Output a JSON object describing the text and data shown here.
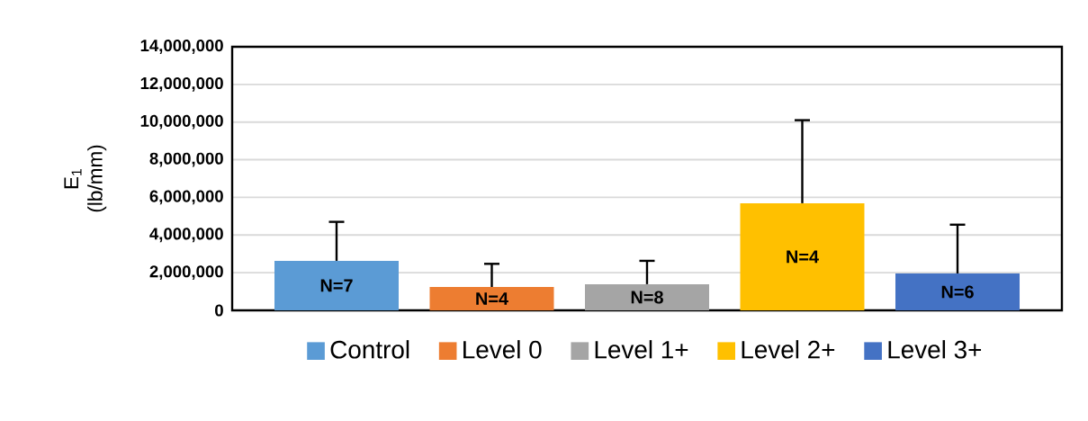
{
  "chart_data": {
    "type": "bar",
    "ylabel": "E$_{1}$ (lb/mm)",
    "categories": [
      null
    ],
    "series": [
      {
        "name": "Control",
        "color": "#5b9bd5",
        "values": [
          2630000
        ],
        "errors": [
          [
            2630000,
            4700000
          ]
        ]
      },
      {
        "name": "Level 0",
        "color": "#ed7d31",
        "values": [
          1240000
        ],
        "errors": [
          [
            1240000,
            2470000
          ]
        ]
      },
      {
        "name": "Level 1+",
        "color": "#a5a5a5",
        "values": [
          1390000
        ],
        "errors": [
          [
            1390000,
            2630000
          ]
        ]
      },
      {
        "name": "Level 2+",
        "color": "#ffc000",
        "values": [
          5690000
        ],
        "errors": [
          [
            5690000,
            10100000
          ]
        ]
      },
      {
        "name": "Level 3+",
        "color": "#4472c4",
        "values": [
          1960000
        ],
        "errors": [
          [
            1960000,
            4550000
          ]
        ]
      }
    ],
    "ylim": [
      0,
      14000000
    ],
    "yticks": [
      {
        "value": 0,
        "label": "0"
      },
      {
        "value": 2000000,
        "label": "2,000,000"
      },
      {
        "value": 4000000,
        "label": "4,000,000"
      },
      {
        "value": 6000000,
        "label": "6,000,000"
      },
      {
        "value": 8000000,
        "label": "8,000,000"
      },
      {
        "value": 10000000,
        "label": "10,000,000"
      },
      {
        "value": 12000000,
        "label": "12,000,000"
      },
      {
        "value": 14000000,
        "label": "14,000,000"
      }
    ],
    "grid": "y",
    "legend": "bottom",
    "annotations": [
      "N=7",
      "N=4",
      "N=8",
      "N=4",
      "N=6"
    ]
  }
}
